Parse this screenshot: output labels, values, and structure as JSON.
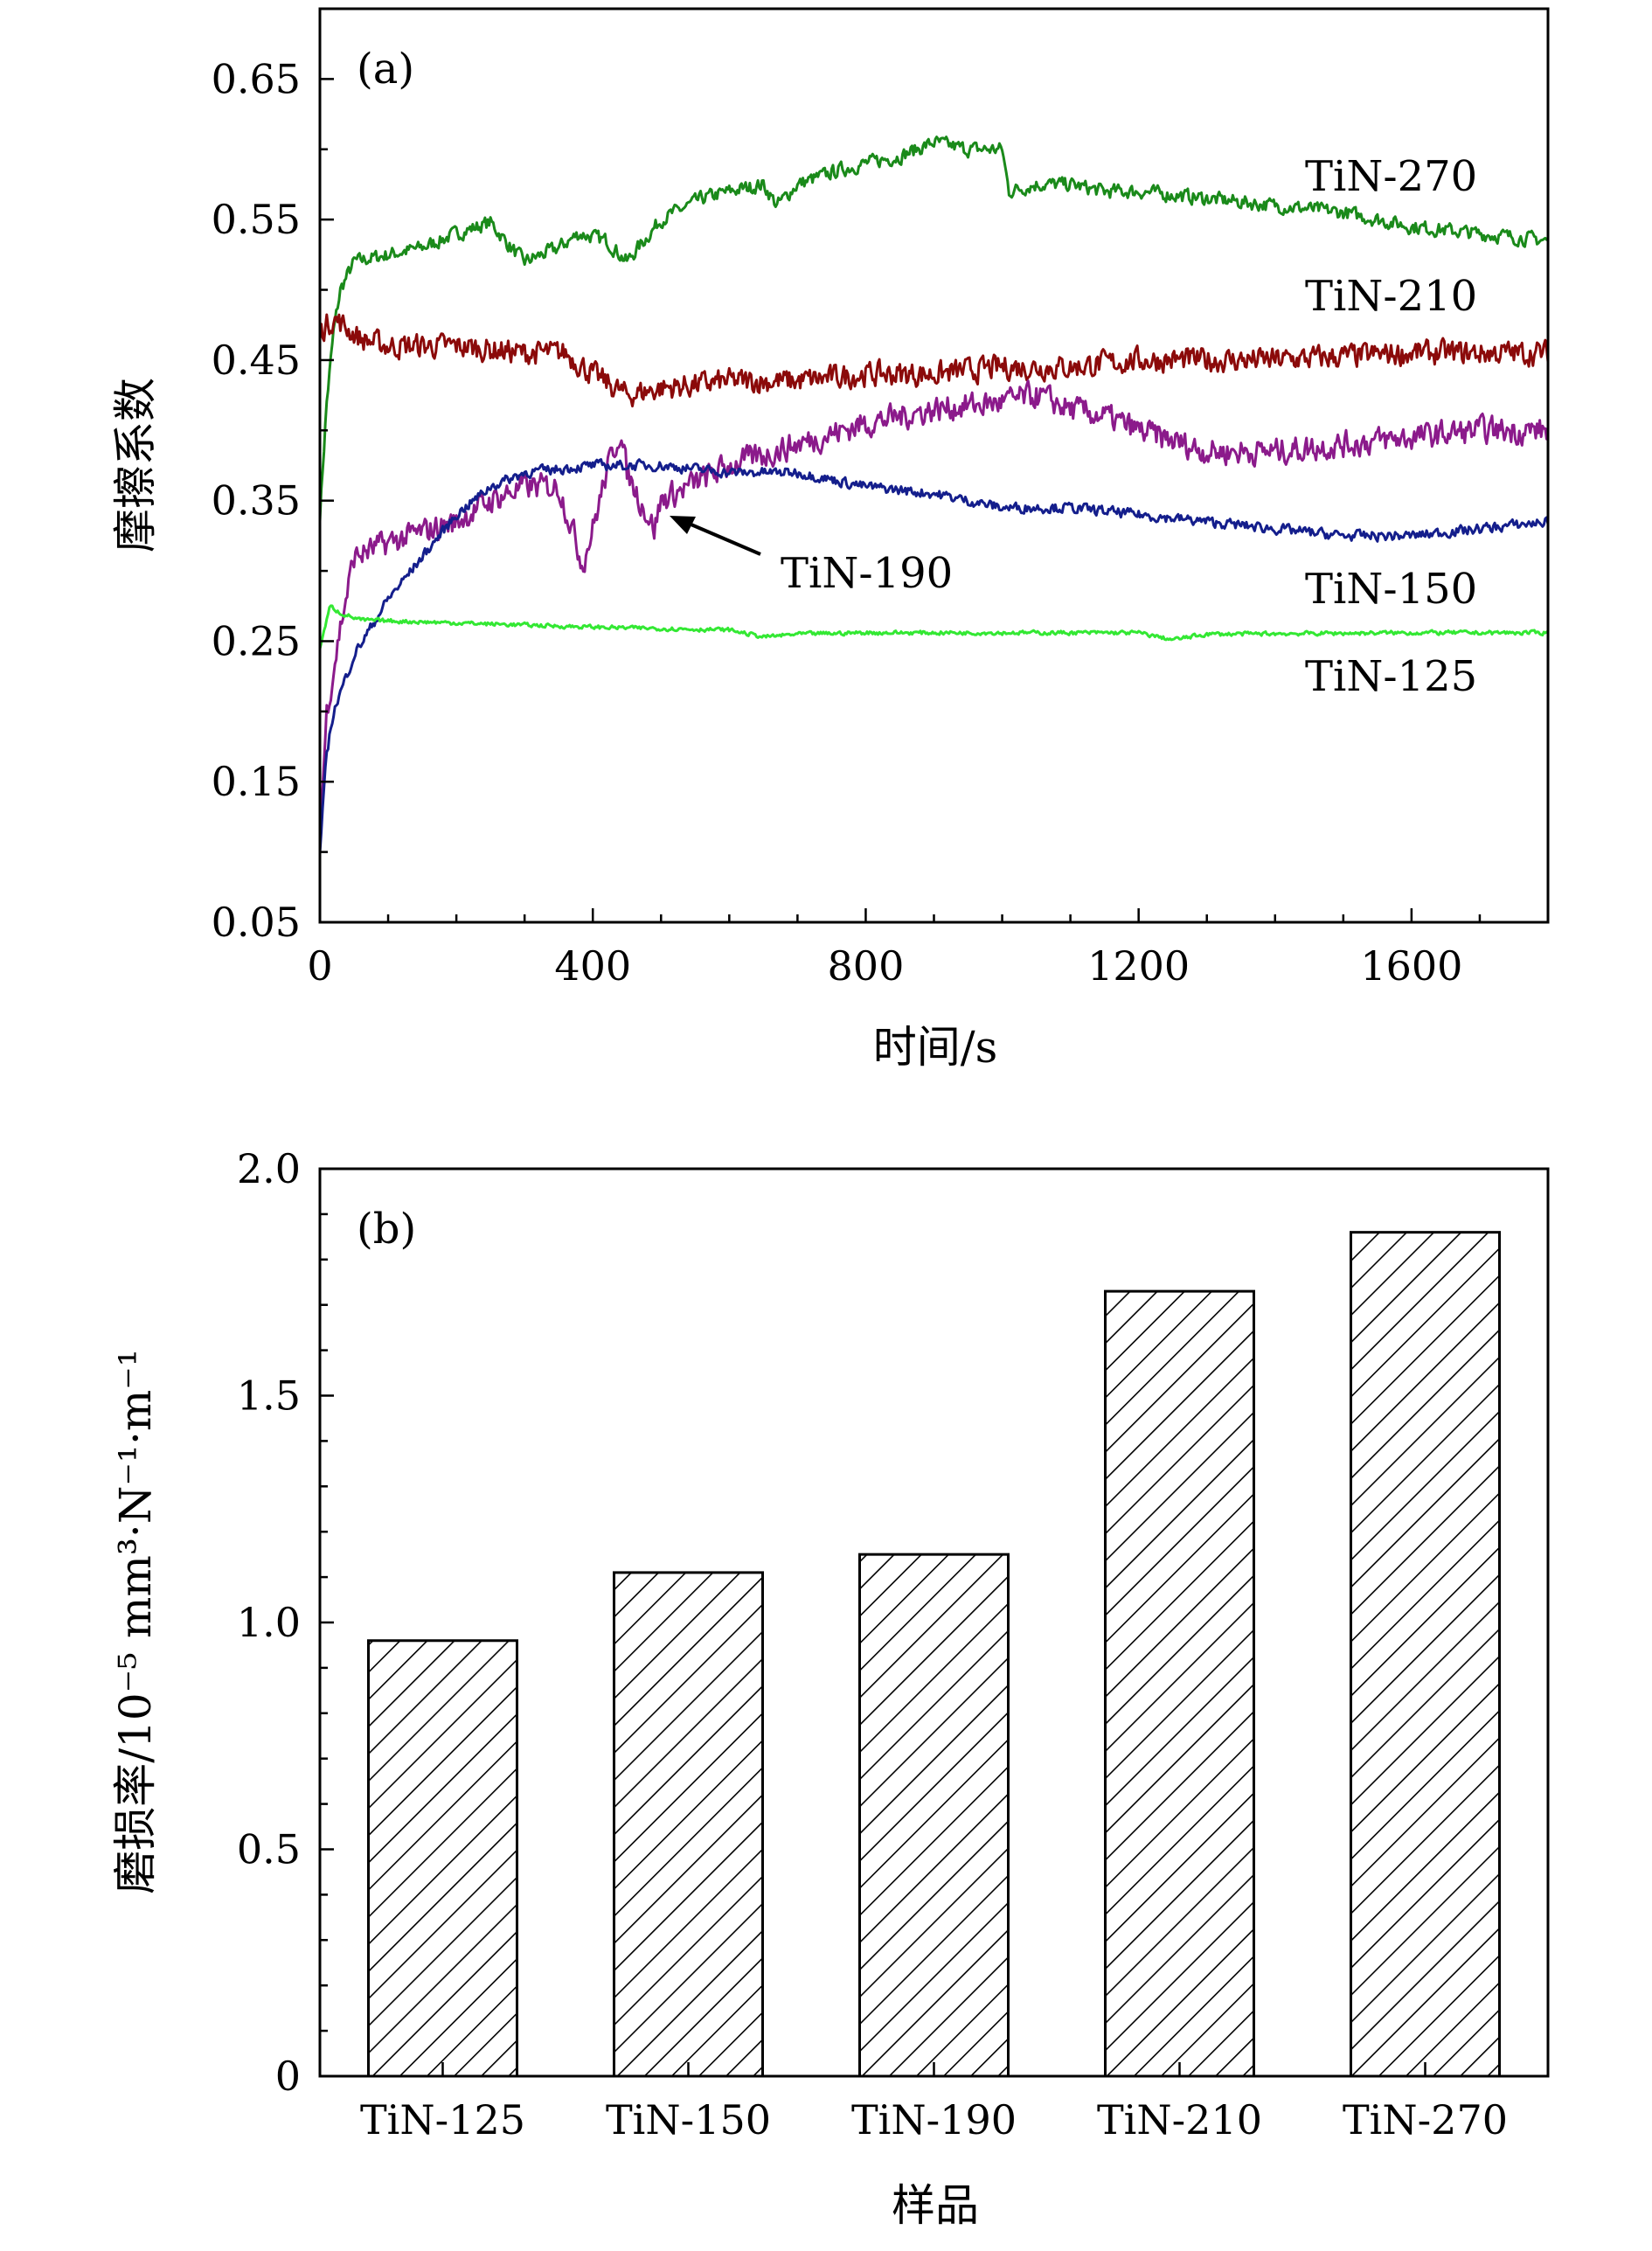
{
  "chart_data": [
    {
      "type": "line",
      "panel_label": "(a)",
      "xlabel": "时间/s",
      "ylabel": "摩擦系数",
      "xlim": [
        0,
        1800
      ],
      "ylim": [
        0.05,
        0.7
      ],
      "xticks": [
        0,
        400,
        800,
        1200,
        1600
      ],
      "yticks": [
        0.05,
        0.15,
        0.25,
        0.35,
        0.45,
        0.55,
        0.65
      ],
      "ytick_labels": [
        "0.05",
        "0.15",
        "0.25",
        "0.35",
        "0.45",
        "0.55",
        "0.65"
      ],
      "grid": false,
      "series": [
        {
          "name": "TiN-270",
          "color": "#1a8a1a",
          "noise": 0.007,
          "points": [
            [
              0,
              0.34
            ],
            [
              10,
              0.42
            ],
            [
              20,
              0.47
            ],
            [
              30,
              0.5
            ],
            [
              50,
              0.52
            ],
            [
              100,
              0.525
            ],
            [
              150,
              0.53
            ],
            [
              200,
              0.54
            ],
            [
              250,
              0.548
            ],
            [
              280,
              0.53
            ],
            [
              300,
              0.52
            ],
            [
              350,
              0.53
            ],
            [
              380,
              0.54
            ],
            [
              420,
              0.535
            ],
            [
              450,
              0.52
            ],
            [
              500,
              0.55
            ],
            [
              560,
              0.565
            ],
            [
              600,
              0.57
            ],
            [
              650,
              0.575
            ],
            [
              670,
              0.56
            ],
            [
              700,
              0.575
            ],
            [
              760,
              0.585
            ],
            [
              800,
              0.59
            ],
            [
              850,
              0.595
            ],
            [
              900,
              0.605
            ],
            [
              950,
              0.6
            ],
            [
              1000,
              0.6
            ],
            [
              1010,
              0.57
            ],
            [
              1050,
              0.575
            ],
            [
              1100,
              0.575
            ],
            [
              1150,
              0.57
            ],
            [
              1200,
              0.57
            ],
            [
              1300,
              0.565
            ],
            [
              1400,
              0.56
            ],
            [
              1500,
              0.555
            ],
            [
              1600,
              0.545
            ],
            [
              1700,
              0.54
            ],
            [
              1800,
              0.535
            ]
          ]
        },
        {
          "name": "TiN-210",
          "color": "#8b0a0a",
          "noise": 0.012,
          "points": [
            [
              0,
              0.47
            ],
            [
              20,
              0.48
            ],
            [
              60,
              0.465
            ],
            [
              100,
              0.46
            ],
            [
              200,
              0.46
            ],
            [
              300,
              0.455
            ],
            [
              360,
              0.455
            ],
            [
              400,
              0.44
            ],
            [
              450,
              0.425
            ],
            [
              500,
              0.43
            ],
            [
              600,
              0.435
            ],
            [
              700,
              0.435
            ],
            [
              800,
              0.44
            ],
            [
              900,
              0.44
            ],
            [
              1000,
              0.445
            ],
            [
              1100,
              0.445
            ],
            [
              1200,
              0.45
            ],
            [
              1400,
              0.45
            ],
            [
              1600,
              0.455
            ],
            [
              1800,
              0.455
            ]
          ]
        },
        {
          "name": "TiN-190",
          "color": "#8b1a8b",
          "noise": 0.013,
          "points": [
            [
              0,
              0.11
            ],
            [
              10,
              0.2
            ],
            [
              20,
              0.23
            ],
            [
              30,
              0.26
            ],
            [
              50,
              0.31
            ],
            [
              100,
              0.32
            ],
            [
              200,
              0.335
            ],
            [
              250,
              0.35
            ],
            [
              300,
              0.36
            ],
            [
              350,
              0.36
            ],
            [
              370,
              0.33
            ],
            [
              385,
              0.305
            ],
            [
              400,
              0.33
            ],
            [
              420,
              0.37
            ],
            [
              440,
              0.4
            ],
            [
              450,
              0.37
            ],
            [
              470,
              0.35
            ],
            [
              490,
              0.33
            ],
            [
              500,
              0.35
            ],
            [
              600,
              0.375
            ],
            [
              700,
              0.39
            ],
            [
              800,
              0.405
            ],
            [
              900,
              0.415
            ],
            [
              1000,
              0.42
            ],
            [
              1050,
              0.425
            ],
            [
              1100,
              0.415
            ],
            [
              1150,
              0.41
            ],
            [
              1200,
              0.4
            ],
            [
              1300,
              0.385
            ],
            [
              1400,
              0.385
            ],
            [
              1500,
              0.39
            ],
            [
              1600,
              0.395
            ],
            [
              1700,
              0.4
            ],
            [
              1800,
              0.4
            ]
          ]
        },
        {
          "name": "TiN-150",
          "color": "#141e8c",
          "noise": 0.005,
          "points": [
            [
              0,
              0.1
            ],
            [
              10,
              0.17
            ],
            [
              20,
              0.2
            ],
            [
              50,
              0.24
            ],
            [
              100,
              0.28
            ],
            [
              150,
              0.31
            ],
            [
              200,
              0.34
            ],
            [
              250,
              0.36
            ],
            [
              300,
              0.37
            ],
            [
              400,
              0.375
            ],
            [
              500,
              0.375
            ],
            [
              600,
              0.37
            ],
            [
              700,
              0.37
            ],
            [
              800,
              0.36
            ],
            [
              900,
              0.355
            ],
            [
              1000,
              0.345
            ],
            [
              1100,
              0.345
            ],
            [
              1200,
              0.34
            ],
            [
              1300,
              0.335
            ],
            [
              1400,
              0.33
            ],
            [
              1500,
              0.325
            ],
            [
              1600,
              0.325
            ],
            [
              1700,
              0.33
            ],
            [
              1800,
              0.335
            ]
          ]
        },
        {
          "name": "TiN-125",
          "color": "#33e833",
          "noise": 0.002,
          "points": [
            [
              0,
              0.245
            ],
            [
              15,
              0.275
            ],
            [
              30,
              0.27
            ],
            [
              60,
              0.265
            ],
            [
              200,
              0.263
            ],
            [
              400,
              0.26
            ],
            [
              600,
              0.258
            ],
            [
              650,
              0.253
            ],
            [
              700,
              0.255
            ],
            [
              800,
              0.256
            ],
            [
              1000,
              0.256
            ],
            [
              1200,
              0.256
            ],
            [
              1250,
              0.251
            ],
            [
              1300,
              0.255
            ],
            [
              1600,
              0.256
            ],
            [
              1800,
              0.256
            ]
          ]
        }
      ],
      "annotations": [
        {
          "text": "TiN-190",
          "arrow_to": [
            495,
            0.34
          ]
        }
      ]
    },
    {
      "type": "bar",
      "panel_label": "(b)",
      "xlabel": "样品",
      "ylabel": "磨损率/10⁻⁵ mm³·N⁻¹·m⁻¹",
      "ylim": [
        0,
        2.0
      ],
      "yticks": [
        0,
        0.5,
        1.0,
        1.5,
        2.0
      ],
      "ytick_labels": [
        "0",
        "0.5",
        "1.0",
        "1.5",
        "2.0"
      ],
      "categories": [
        "TiN-125",
        "TiN-150",
        "TiN-190",
        "TiN-210",
        "TiN-270"
      ],
      "values": [
        0.96,
        1.11,
        1.15,
        1.73,
        1.86
      ],
      "fill": "hatched",
      "grid": false
    }
  ]
}
